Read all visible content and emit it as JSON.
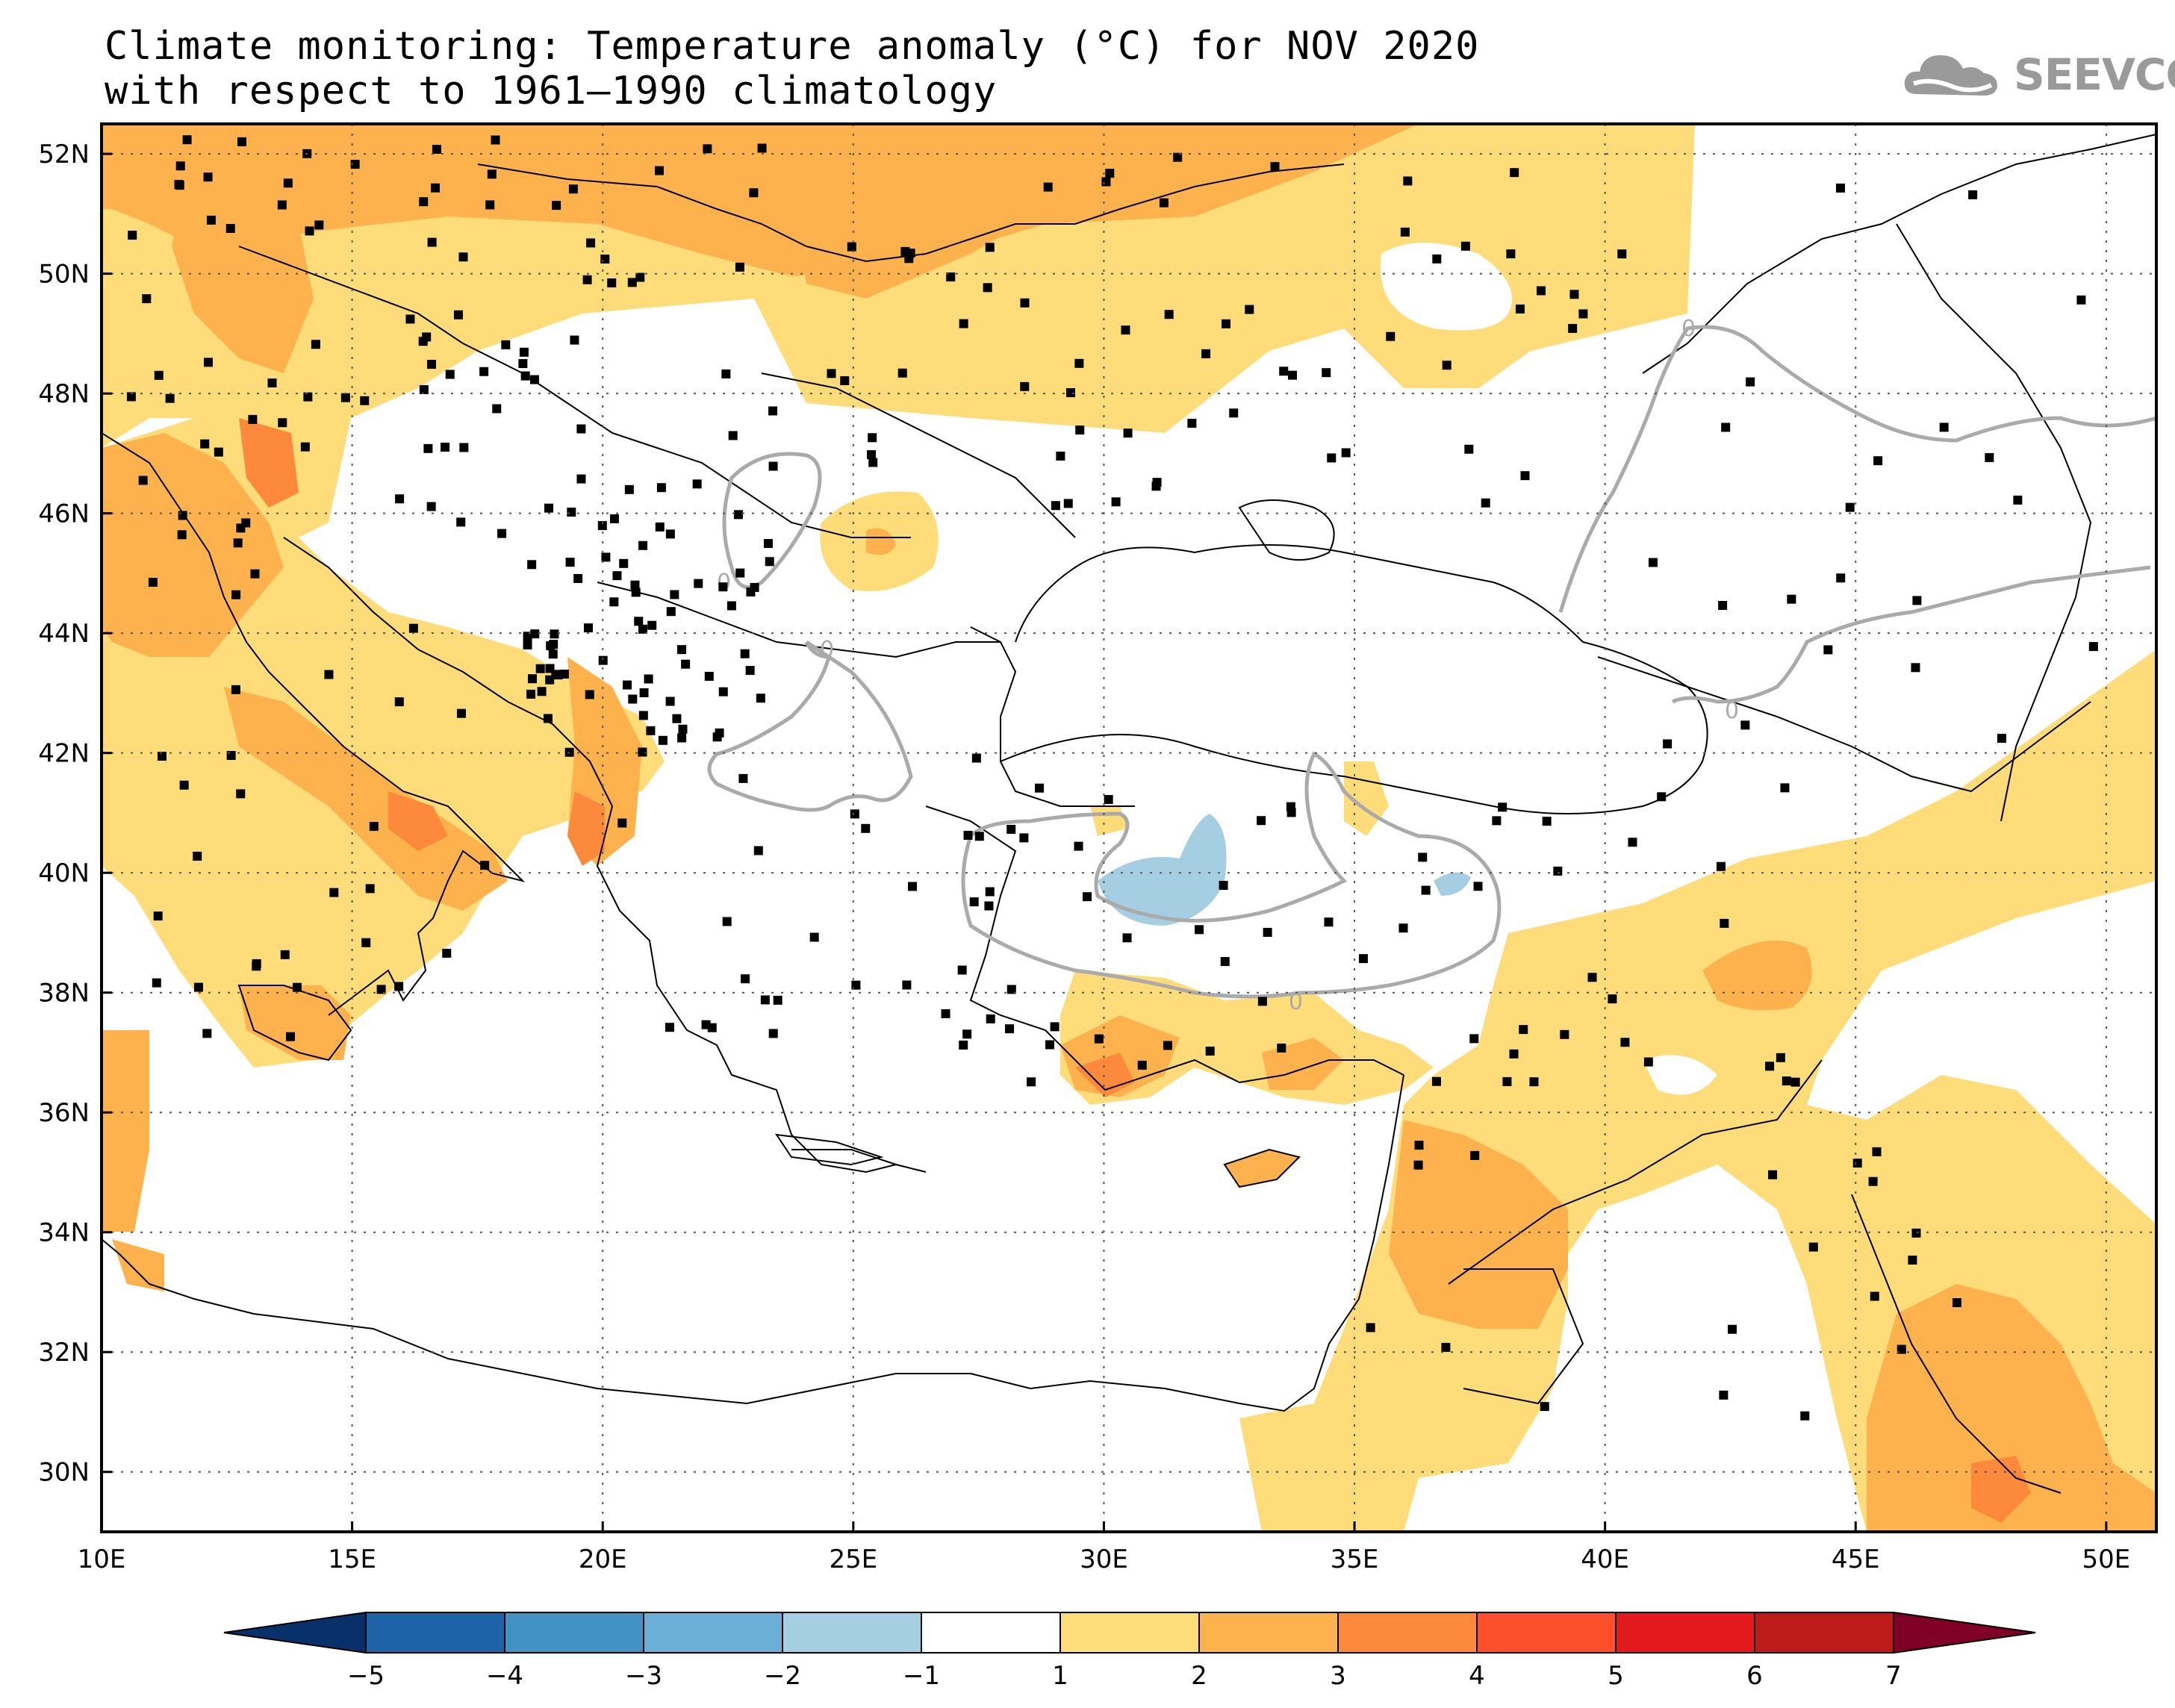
{
  "title": {
    "line1": "Climate monitoring: Temperature anomaly (°C) for NOV 2020",
    "line2": "with respect to 1961–1990 climatology"
  },
  "logo": {
    "text": "SEEVCCC"
  },
  "map": {
    "lon_range": [
      10,
      51
    ],
    "lat_range": [
      29,
      52.5
    ],
    "lon_labels": [
      "10E",
      "15E",
      "20E",
      "25E",
      "30E",
      "35E",
      "40E",
      "45E",
      "50E"
    ],
    "lat_labels": [
      "52N",
      "50N",
      "48N",
      "46N",
      "44N",
      "42N",
      "40N",
      "38N",
      "36N",
      "34N",
      "32N",
      "30N"
    ],
    "contour_labels": [
      "0",
      "0",
      "0",
      "0",
      "0"
    ],
    "grid": "dotted"
  },
  "colorbar": {
    "labels": [
      "-5",
      "-4",
      "-3",
      "-2",
      "-1",
      "1",
      "2",
      "3",
      "4",
      "5",
      "6",
      "7"
    ],
    "colors": [
      "#08306b",
      "#1e63a8",
      "#4292c6",
      "#6baed6",
      "#a6cee3",
      "#ffffff",
      "#fedc7a",
      "#fdb24e",
      "#fd8a3c",
      "#fc4e2a",
      "#e31a1c",
      "#bd1a1a",
      "#800026"
    ]
  },
  "chart_data": {
    "type": "heatmap",
    "title": "Climate monitoring: Temperature anomaly (°C) for NOV 2020 with respect to 1961–1990 climatology",
    "xlabel": "",
    "ylabel": "",
    "x_range": [
      10,
      51
    ],
    "y_range": [
      29,
      52.5
    ],
    "value_bins": [
      -5,
      -4,
      -3,
      -2,
      -1,
      1,
      2,
      3,
      4,
      5,
      6,
      7
    ]
  }
}
